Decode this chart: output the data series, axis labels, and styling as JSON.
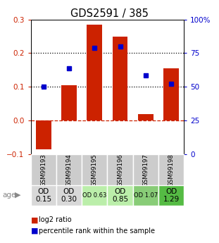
{
  "title": "GDS2591 / 385",
  "samples": [
    "GSM99193",
    "GSM99194",
    "GSM99195",
    "GSM99196",
    "GSM99197",
    "GSM99198"
  ],
  "log2_ratio": [
    -0.085,
    0.105,
    0.285,
    0.25,
    0.02,
    0.155
  ],
  "percentile_rank_left": [
    0.1,
    0.155,
    0.215,
    0.22,
    0.135,
    0.11
  ],
  "bar_color": "#cc2200",
  "dot_color": "#0000cc",
  "ylim_left": [
    -0.1,
    0.3
  ],
  "ylim_right": [
    0,
    100
  ],
  "yticks_left": [
    -0.1,
    0.0,
    0.1,
    0.2,
    0.3
  ],
  "yticks_right": [
    0,
    25,
    50,
    75,
    100
  ],
  "hline_dotted": [
    0.1,
    0.2
  ],
  "hline_zero_color": "#cc2200",
  "age_labels": [
    "OD\n0.15",
    "OD\n0.30",
    "OD 0.63",
    "OD\n0.85",
    "OD 1.07",
    "OD\n1.29"
  ],
  "age_bg_colors": [
    "#d8d8d8",
    "#d8d8d8",
    "#bbeeaa",
    "#bbeeaa",
    "#88cc77",
    "#55bb44"
  ],
  "age_large_idx": [
    0,
    1,
    3,
    5
  ],
  "age_small_idx": [
    2,
    4
  ],
  "sample_bg_color": "#cccccc",
  "legend_log2": "log2 ratio",
  "legend_pct": "percentile rank within the sample",
  "bar_width": 0.6
}
